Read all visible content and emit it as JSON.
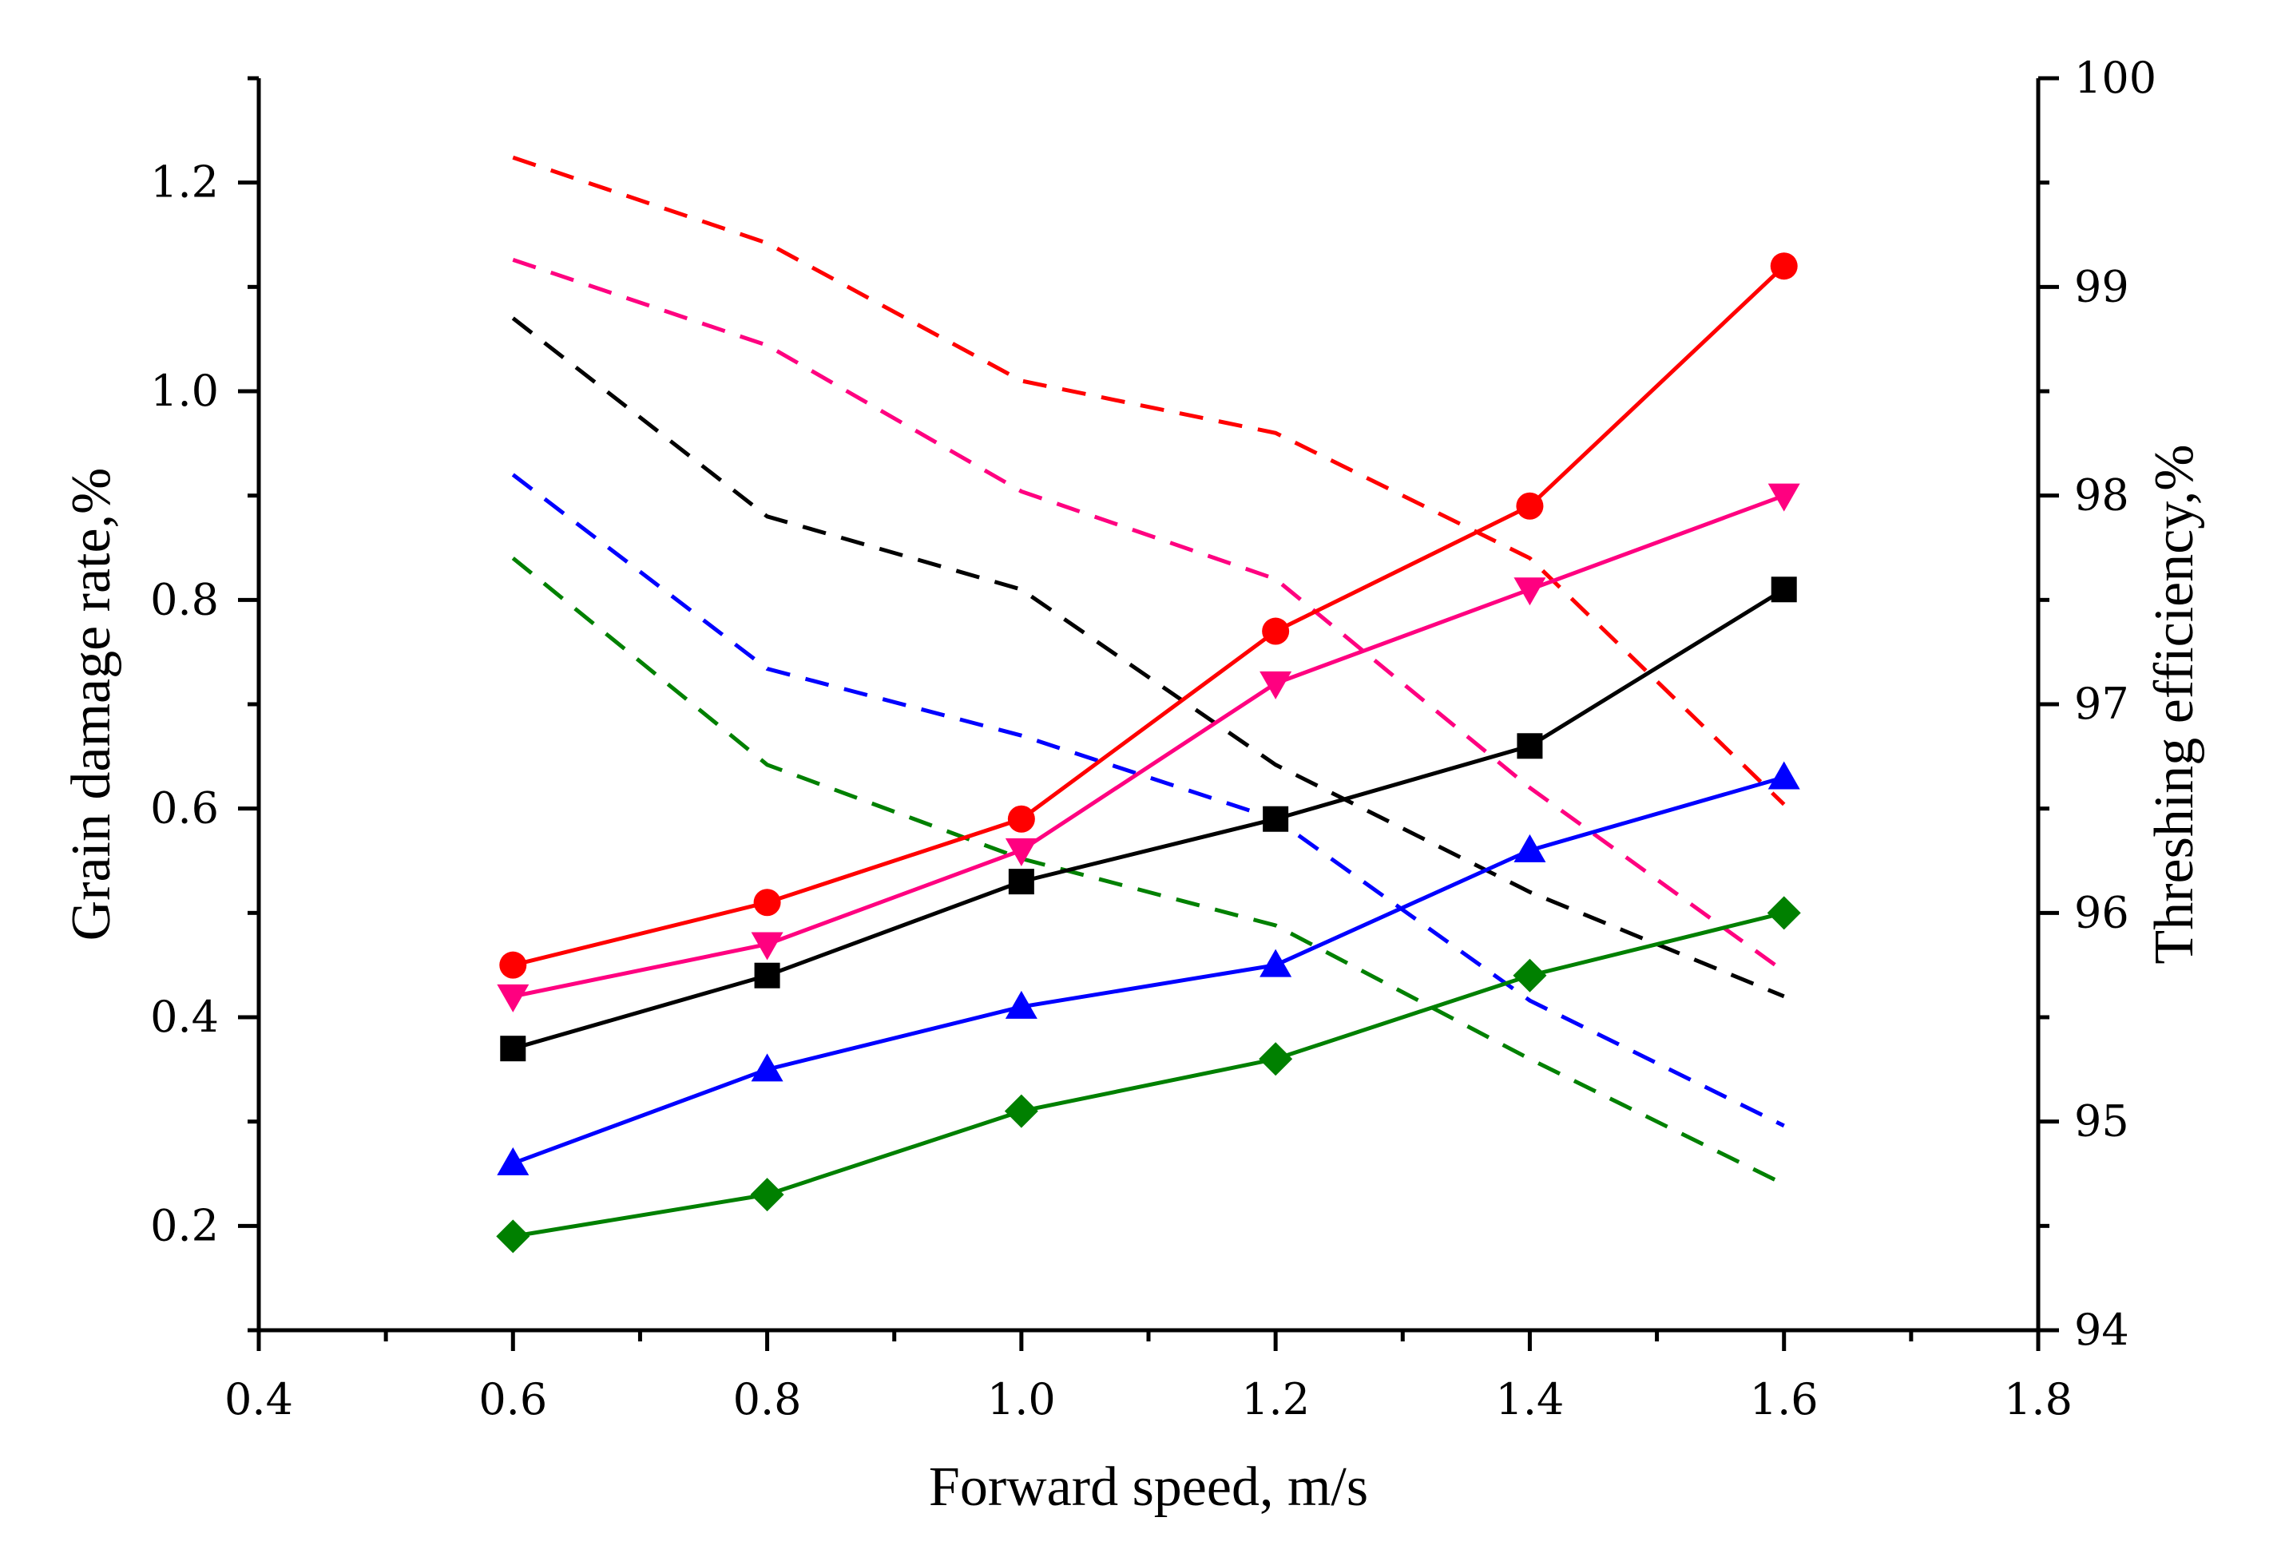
{
  "chart_data": {
    "type": "line",
    "xlabel": "Forward speed, m/s",
    "ylabel_left": "Grain damage rate,%",
    "ylabel_right": "Threshing efficiency,%",
    "xlim": [
      0.4,
      1.8
    ],
    "ylim_left": [
      0.1,
      1.3
    ],
    "ylim_right": [
      94,
      100
    ],
    "x_ticks": [
      "0.4",
      "0.6",
      "0.8",
      "1.0",
      "1.2",
      "1.4",
      "1.6",
      "1.8"
    ],
    "x_tick_values": [
      0.4,
      0.6,
      0.8,
      1.0,
      1.2,
      1.4,
      1.6,
      1.8
    ],
    "y_left_ticks": [
      "0.2",
      "0.4",
      "0.6",
      "0.8",
      "1.0",
      "1.2"
    ],
    "y_left_tick_values": [
      0.2,
      0.4,
      0.6,
      0.8,
      1.0,
      1.2
    ],
    "y_right_ticks": [
      "94",
      "95",
      "96",
      "97",
      "98",
      "99",
      "100"
    ],
    "y_right_tick_values": [
      94,
      95,
      96,
      97,
      98,
      99,
      100
    ],
    "x": [
      0.6,
      0.8,
      1.0,
      1.2,
      1.4,
      1.6
    ],
    "damage_series": [
      {
        "name": "red-circle",
        "color": "#ff0000",
        "marker": "circle",
        "values": [
          0.45,
          0.51,
          0.59,
          0.77,
          0.89,
          1.12
        ]
      },
      {
        "name": "pink-down-triangle",
        "color": "#ff0080",
        "marker": "triangle-down",
        "values": [
          0.42,
          0.47,
          0.56,
          0.72,
          0.81,
          0.9
        ]
      },
      {
        "name": "black-square",
        "color": "#000000",
        "marker": "square",
        "values": [
          0.37,
          0.44,
          0.53,
          0.59,
          0.66,
          0.81
        ]
      },
      {
        "name": "blue-up-triangle",
        "color": "#0000ff",
        "marker": "triangle-up",
        "values": [
          0.26,
          0.35,
          0.41,
          0.45,
          0.56,
          0.63
        ]
      },
      {
        "name": "green-diamond",
        "color": "#008000",
        "marker": "diamond",
        "values": [
          0.19,
          0.23,
          0.31,
          0.36,
          0.44,
          0.5
        ]
      }
    ],
    "efficiency_series": [
      {
        "name": "red-dashed",
        "color": "#ff0000",
        "values": [
          99.62,
          99.21,
          98.55,
          98.3,
          97.7,
          96.52
        ]
      },
      {
        "name": "pink-dashed",
        "color": "#ff0080",
        "values": [
          99.13,
          98.72,
          98.02,
          97.6,
          96.6,
          95.72
        ]
      },
      {
        "name": "black-dashed",
        "color": "#000000",
        "values": [
          98.85,
          97.9,
          97.55,
          96.71,
          96.1,
          95.6
        ]
      },
      {
        "name": "blue-dashed",
        "color": "#0000ff",
        "values": [
          98.1,
          97.17,
          96.85,
          96.45,
          95.58,
          94.98
        ]
      },
      {
        "name": "green-dashed",
        "color": "#008000",
        "values": [
          97.7,
          96.71,
          96.26,
          95.94,
          95.3,
          94.7
        ]
      }
    ]
  }
}
